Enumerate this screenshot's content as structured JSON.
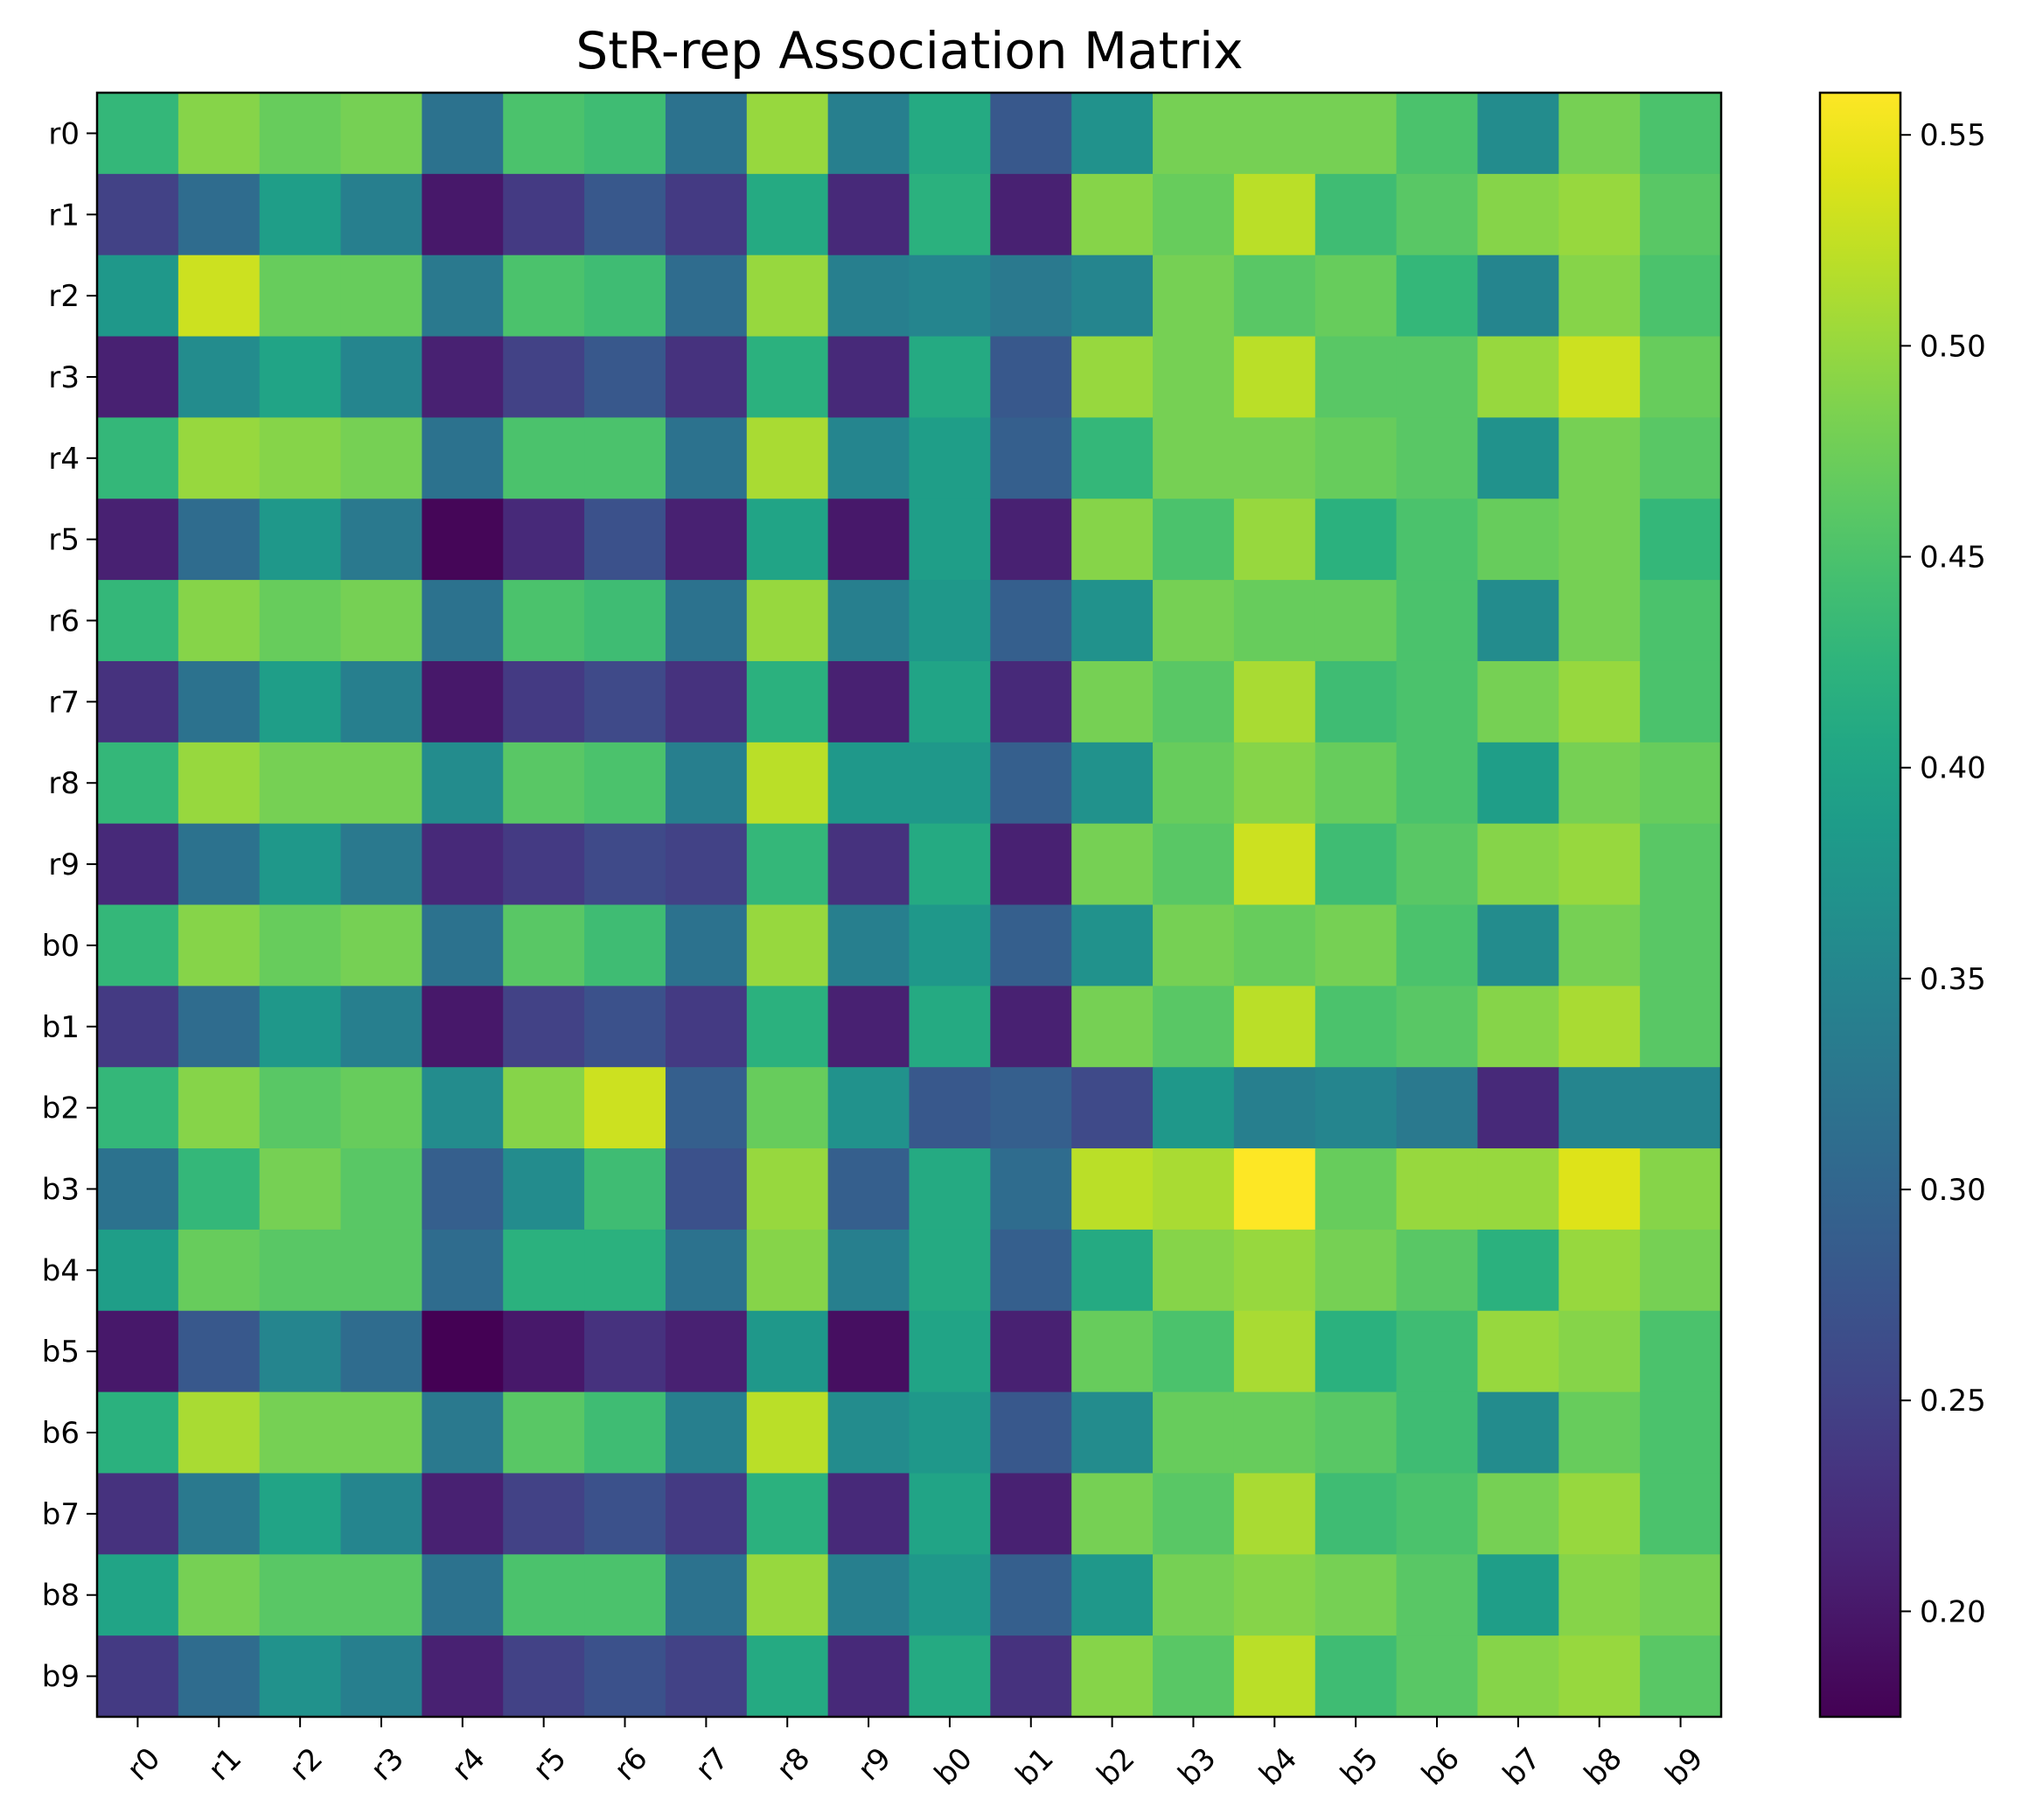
{
  "chart_data": {
    "type": "heatmap",
    "title": "StR-rep Association Matrix",
    "xlabel": "",
    "ylabel": "",
    "colormap": "viridis",
    "vmin": 0.175,
    "vmax": 0.56,
    "x_categories": [
      "r0",
      "r1",
      "r2",
      "r3",
      "r4",
      "r5",
      "r6",
      "r7",
      "r8",
      "r9",
      "b0",
      "b1",
      "b2",
      "b3",
      "b4",
      "b5",
      "b6",
      "b7",
      "b8",
      "b9"
    ],
    "y_categories": [
      "r0",
      "r1",
      "r2",
      "r3",
      "r4",
      "r5",
      "r6",
      "r7",
      "r8",
      "r9",
      "b0",
      "b1",
      "b2",
      "b3",
      "b4",
      "b5",
      "b6",
      "b7",
      "b8",
      "b9"
    ],
    "colorbar_ticks": [
      "0.20",
      "0.25",
      "0.30",
      "0.35",
      "0.40",
      "0.45",
      "0.50",
      "0.55"
    ],
    "colorbar_tick_values": [
      0.2,
      0.25,
      0.3,
      0.35,
      0.4,
      0.45,
      0.5,
      0.55
    ],
    "values": [
      [
        0.43,
        0.49,
        0.47,
        0.48,
        0.32,
        0.45,
        0.44,
        0.32,
        0.5,
        0.34,
        0.41,
        0.28,
        0.37,
        0.48,
        0.48,
        0.48,
        0.45,
        0.36,
        0.48,
        0.45
      ],
      [
        0.25,
        0.31,
        0.39,
        0.34,
        0.2,
        0.24,
        0.28,
        0.24,
        0.41,
        0.22,
        0.42,
        0.21,
        0.49,
        0.47,
        0.52,
        0.44,
        0.46,
        0.49,
        0.5,
        0.46
      ],
      [
        0.38,
        0.53,
        0.47,
        0.47,
        0.33,
        0.45,
        0.44,
        0.31,
        0.5,
        0.34,
        0.35,
        0.33,
        0.35,
        0.48,
        0.46,
        0.47,
        0.43,
        0.35,
        0.49,
        0.45
      ],
      [
        0.21,
        0.36,
        0.4,
        0.35,
        0.21,
        0.25,
        0.28,
        0.23,
        0.42,
        0.22,
        0.41,
        0.28,
        0.5,
        0.48,
        0.52,
        0.46,
        0.46,
        0.5,
        0.53,
        0.47
      ],
      [
        0.43,
        0.5,
        0.49,
        0.48,
        0.32,
        0.45,
        0.45,
        0.32,
        0.51,
        0.35,
        0.39,
        0.29,
        0.43,
        0.48,
        0.48,
        0.47,
        0.46,
        0.37,
        0.48,
        0.46
      ],
      [
        0.21,
        0.31,
        0.38,
        0.33,
        0.18,
        0.22,
        0.27,
        0.21,
        0.4,
        0.2,
        0.39,
        0.21,
        0.49,
        0.45,
        0.5,
        0.42,
        0.45,
        0.47,
        0.48,
        0.43
      ],
      [
        0.43,
        0.49,
        0.47,
        0.48,
        0.32,
        0.45,
        0.44,
        0.32,
        0.5,
        0.34,
        0.38,
        0.29,
        0.37,
        0.48,
        0.47,
        0.47,
        0.45,
        0.36,
        0.48,
        0.45
      ],
      [
        0.23,
        0.32,
        0.39,
        0.34,
        0.2,
        0.24,
        0.26,
        0.23,
        0.42,
        0.21,
        0.4,
        0.22,
        0.48,
        0.46,
        0.51,
        0.44,
        0.45,
        0.48,
        0.5,
        0.45
      ],
      [
        0.43,
        0.5,
        0.48,
        0.48,
        0.36,
        0.46,
        0.45,
        0.34,
        0.52,
        0.38,
        0.38,
        0.29,
        0.37,
        0.47,
        0.49,
        0.47,
        0.45,
        0.39,
        0.48,
        0.47
      ],
      [
        0.22,
        0.32,
        0.38,
        0.33,
        0.22,
        0.24,
        0.26,
        0.25,
        0.43,
        0.23,
        0.41,
        0.21,
        0.48,
        0.46,
        0.53,
        0.44,
        0.46,
        0.49,
        0.5,
        0.46
      ],
      [
        0.43,
        0.49,
        0.47,
        0.48,
        0.32,
        0.46,
        0.44,
        0.32,
        0.5,
        0.34,
        0.38,
        0.29,
        0.37,
        0.48,
        0.47,
        0.48,
        0.45,
        0.36,
        0.48,
        0.46
      ],
      [
        0.24,
        0.31,
        0.38,
        0.34,
        0.2,
        0.25,
        0.27,
        0.24,
        0.42,
        0.21,
        0.41,
        0.21,
        0.48,
        0.46,
        0.52,
        0.45,
        0.46,
        0.49,
        0.51,
        0.46
      ],
      [
        0.43,
        0.49,
        0.46,
        0.47,
        0.36,
        0.49,
        0.53,
        0.29,
        0.47,
        0.37,
        0.28,
        0.29,
        0.26,
        0.38,
        0.34,
        0.35,
        0.33,
        0.22,
        0.35,
        0.35
      ],
      [
        0.32,
        0.43,
        0.48,
        0.46,
        0.29,
        0.36,
        0.44,
        0.27,
        0.5,
        0.29,
        0.41,
        0.31,
        0.52,
        0.51,
        0.56,
        0.47,
        0.5,
        0.5,
        0.54,
        0.49
      ],
      [
        0.39,
        0.47,
        0.46,
        0.46,
        0.31,
        0.42,
        0.42,
        0.32,
        0.49,
        0.34,
        0.41,
        0.29,
        0.41,
        0.49,
        0.5,
        0.48,
        0.46,
        0.42,
        0.5,
        0.48
      ],
      [
        0.2,
        0.28,
        0.35,
        0.31,
        0.175,
        0.2,
        0.23,
        0.21,
        0.38,
        0.19,
        0.4,
        0.21,
        0.47,
        0.45,
        0.51,
        0.42,
        0.44,
        0.5,
        0.49,
        0.45
      ],
      [
        0.42,
        0.51,
        0.48,
        0.48,
        0.33,
        0.46,
        0.44,
        0.34,
        0.52,
        0.36,
        0.38,
        0.28,
        0.36,
        0.47,
        0.47,
        0.46,
        0.44,
        0.36,
        0.47,
        0.45
      ],
      [
        0.23,
        0.33,
        0.4,
        0.35,
        0.21,
        0.25,
        0.27,
        0.24,
        0.42,
        0.22,
        0.4,
        0.21,
        0.48,
        0.46,
        0.51,
        0.44,
        0.45,
        0.48,
        0.5,
        0.45
      ],
      [
        0.4,
        0.48,
        0.46,
        0.46,
        0.32,
        0.45,
        0.45,
        0.32,
        0.5,
        0.34,
        0.38,
        0.29,
        0.38,
        0.48,
        0.49,
        0.48,
        0.46,
        0.39,
        0.49,
        0.48
      ],
      [
        0.24,
        0.31,
        0.37,
        0.34,
        0.21,
        0.25,
        0.27,
        0.25,
        0.41,
        0.22,
        0.41,
        0.23,
        0.49,
        0.46,
        0.52,
        0.44,
        0.46,
        0.49,
        0.5,
        0.46
      ]
    ]
  }
}
